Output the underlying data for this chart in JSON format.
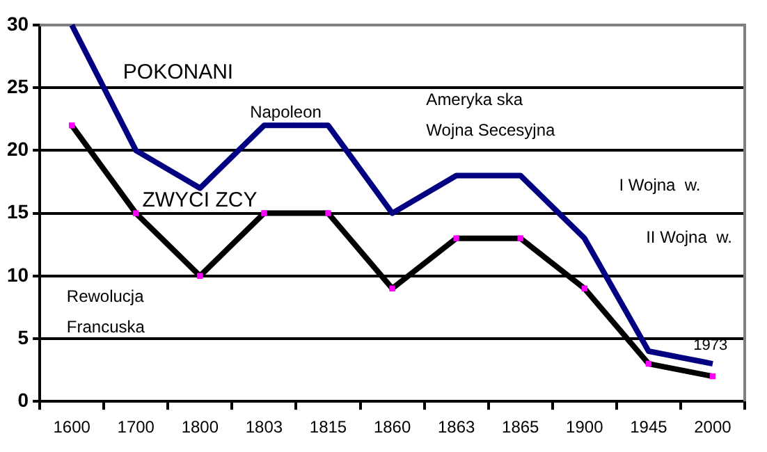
{
  "chart_data": {
    "type": "line",
    "categories": [
      "1600",
      "1700",
      "1800",
      "1803",
      "1815",
      "1860",
      "1863",
      "1865",
      "1900",
      "1945",
      "2000"
    ],
    "series": [
      {
        "name": "POKONANI",
        "color": "#000080",
        "marker": "none",
        "values": [
          30,
          20,
          17,
          22,
          22,
          15,
          18,
          18,
          13,
          4,
          3
        ]
      },
      {
        "name": "ZWYCI ZCY",
        "color": "#000000",
        "marker": "square",
        "values": [
          22,
          15,
          10,
          15,
          15,
          9,
          13,
          13,
          9,
          3,
          2
        ]
      }
    ],
    "annotations": [
      "Napoleon",
      "Ameryka ska\nWojna Secesyjna",
      "Rewolucja\nFrancuska",
      "I Wojna  w.",
      "II Wojna  w.",
      "1973"
    ],
    "ylim": [
      0,
      30
    ],
    "yticks": [
      0,
      5,
      10,
      15,
      20,
      25,
      30
    ],
    "grid": "y",
    "legend": false
  }
}
